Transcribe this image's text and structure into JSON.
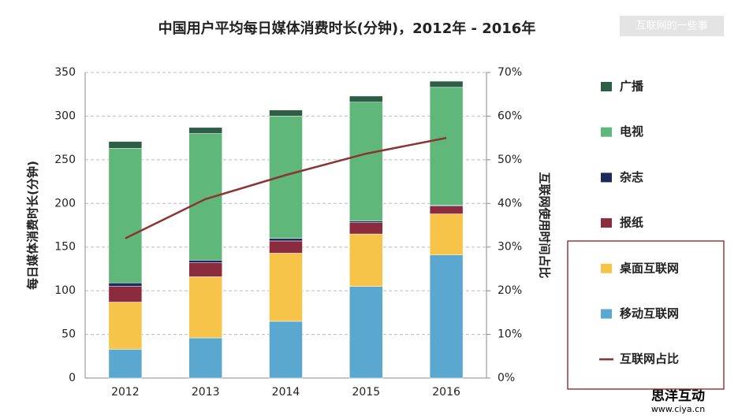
{
  "chart_data": {
    "type": "bar",
    "title": "中国用户平均每日媒体消费时长(分钟)，2012年  -  2016年",
    "y_label": "每日媒体消费时长(分钟)",
    "y2_label": "互联网使用时间占比",
    "categories": [
      "2012",
      "2013",
      "2014",
      "2015",
      "2016"
    ],
    "series": [
      {
        "name": "移动互联网",
        "color": "#5aa8d0",
        "values": [
          33,
          46,
          65,
          105,
          141
        ]
      },
      {
        "name": "桌面互联网",
        "color": "#f5c448",
        "values": [
          54,
          70,
          78,
          60,
          47
        ]
      },
      {
        "name": "报纸",
        "color": "#8b2b3e",
        "values": [
          18,
          16,
          14,
          13,
          9
        ]
      },
      {
        "name": "杂志",
        "color": "#1f2a5c",
        "values": [
          4,
          3,
          3,
          2,
          1
        ]
      },
      {
        "name": "电视",
        "color": "#5fb87a",
        "values": [
          154,
          145,
          140,
          136,
          135
        ]
      },
      {
        "name": "广播",
        "color": "#2e5e46",
        "values": [
          8,
          7,
          7,
          7,
          7
        ]
      },
      {
        "name": "互联网占比",
        "color": "#8b3434",
        "values": [
          32,
          41,
          46.5,
          51.4,
          55
        ],
        "axis": "y2"
      }
    ],
    "ylim": [
      0,
      350
    ],
    "yticks": [
      0,
      50,
      100,
      150,
      200,
      250,
      300,
      350
    ],
    "y2lim": [
      0,
      70
    ],
    "y2ticks": [
      {
        "value": 0,
        "label": "0%"
      },
      {
        "value": 10,
        "label": "10%"
      },
      {
        "value": 20,
        "label": "20%"
      },
      {
        "value": 30,
        "label": "30%"
      },
      {
        "value": 40,
        "label": "40%"
      },
      {
        "value": 50,
        "label": "50%"
      },
      {
        "value": 60,
        "label": "60%"
      },
      {
        "value": 70,
        "label": "70%"
      }
    ],
    "grid": true,
    "legend": "right",
    "watermarks": [
      "互联网的一些事",
      "思洋互动",
      "www.ciya.cn"
    ]
  }
}
